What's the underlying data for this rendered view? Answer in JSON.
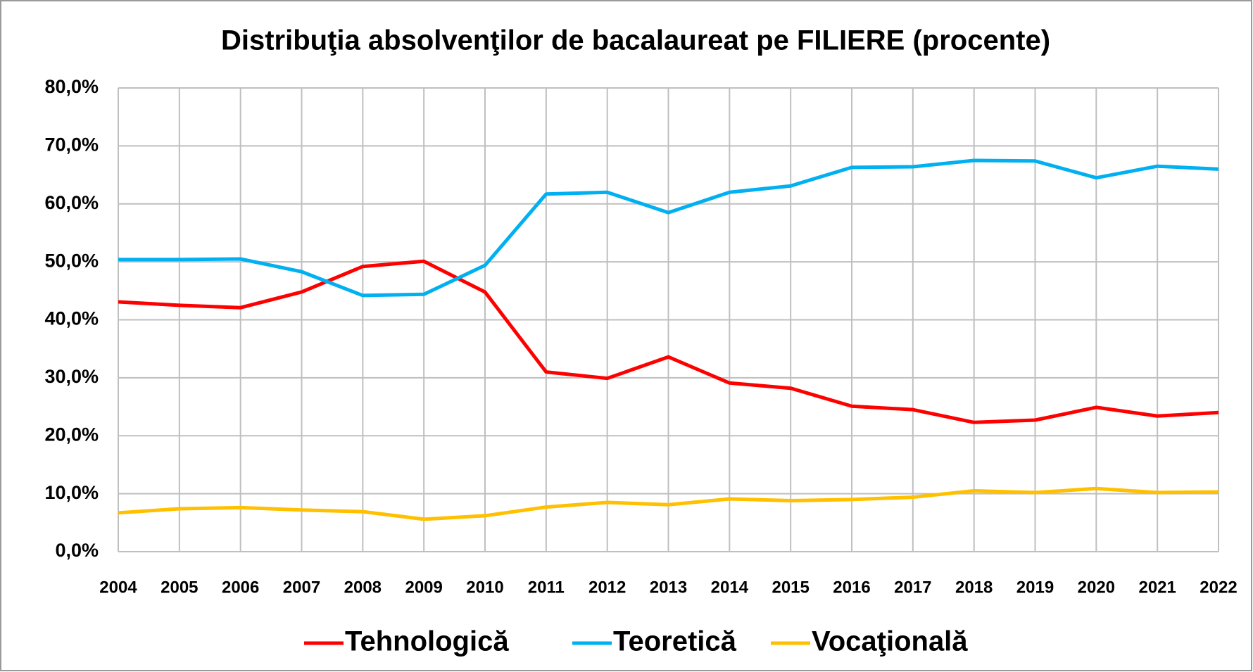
{
  "chart_data": {
    "type": "line",
    "title": "Distribuţia absolvenţilor de bacalaureat pe FILIERE (procente)",
    "categories": [
      "2004",
      "2005",
      "2006",
      "2007",
      "2008",
      "2009",
      "2010",
      "2011",
      "2012",
      "2013",
      "2014",
      "2015",
      "2016",
      "2017",
      "2018",
      "2019",
      "2020",
      "2021",
      "2022"
    ],
    "series": [
      {
        "name": "Tehnologică",
        "color": "#ff0000",
        "values": [
          43.1,
          42.5,
          42.1,
          44.8,
          49.2,
          50.1,
          44.8,
          31.0,
          29.9,
          33.6,
          29.1,
          28.2,
          25.1,
          24.5,
          22.3,
          22.7,
          24.9,
          23.4,
          24.0
        ]
      },
      {
        "name": "Teoretică",
        "color": "#00b0f0",
        "values": [
          50.4,
          50.4,
          50.5,
          48.3,
          44.2,
          44.4,
          49.4,
          61.7,
          62.0,
          58.5,
          62.0,
          63.1,
          66.3,
          66.4,
          67.5,
          67.4,
          64.5,
          66.5,
          66.0
        ]
      },
      {
        "name": "Vocaţională",
        "color": "#ffc000",
        "values": [
          6.7,
          7.4,
          7.6,
          7.2,
          6.9,
          5.6,
          6.2,
          7.7,
          8.5,
          8.1,
          9.1,
          8.8,
          9.0,
          9.4,
          10.5,
          10.2,
          10.9,
          10.2,
          10.3
        ]
      }
    ],
    "ylim": [
      0,
      80
    ],
    "yticks": [
      {
        "value": 0,
        "label": "0,0%"
      },
      {
        "value": 10,
        "label": "10,0%"
      },
      {
        "value": 20,
        "label": "20,0%"
      },
      {
        "value": 30,
        "label": "30,0%"
      },
      {
        "value": 40,
        "label": "40,0%"
      },
      {
        "value": 50,
        "label": "50,0%"
      },
      {
        "value": 60,
        "label": "60,0%"
      },
      {
        "value": 70,
        "label": "70,0%"
      },
      {
        "value": 80,
        "label": "80,0%"
      }
    ],
    "grid": true,
    "legend": "bottom"
  }
}
